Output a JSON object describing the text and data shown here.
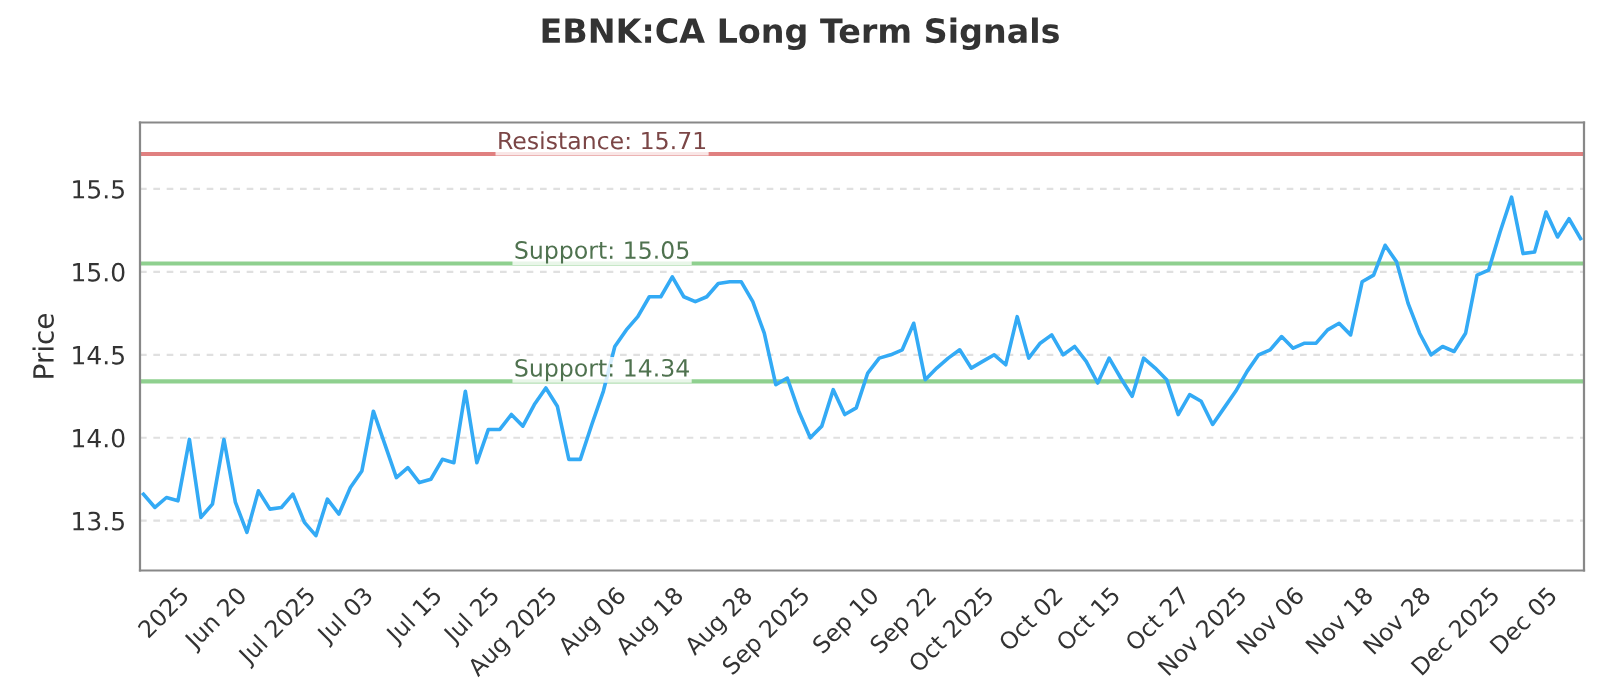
{
  "chart_data": {
    "type": "line",
    "title": "EBNK:CA Long Term Signals",
    "ylabel": "Price",
    "categories": [
      null,
      null,
      null,
      "2025",
      null,
      null,
      null,
      null,
      "Jun 20",
      null,
      null,
      null,
      null,
      null,
      "Jul 2025",
      null,
      null,
      null,
      null,
      "Jul 03",
      null,
      null,
      null,
      null,
      null,
      "Jul 15",
      null,
      null,
      null,
      null,
      "Jul 25",
      null,
      null,
      null,
      null,
      "Aug 2025",
      null,
      null,
      null,
      null,
      null,
      "Aug 06",
      null,
      null,
      null,
      null,
      "Aug 18",
      null,
      null,
      null,
      null,
      null,
      "Aug 28",
      null,
      null,
      null,
      null,
      "Sep 2025",
      null,
      null,
      null,
      null,
      null,
      "Sep 10",
      null,
      null,
      null,
      null,
      "Sep 22",
      null,
      null,
      null,
      null,
      "Oct 2025",
      null,
      null,
      null,
      null,
      null,
      "Oct 02",
      null,
      null,
      null,
      null,
      "Oct 15",
      null,
      null,
      null,
      null,
      null,
      "Oct 27",
      null,
      null,
      null,
      null,
      "Nov 2025",
      null,
      null,
      null,
      null,
      "Nov 06",
      null,
      null,
      null,
      null,
      null,
      "Nov 18",
      null,
      null,
      null,
      null,
      "Nov 28",
      null,
      null,
      null,
      null,
      null,
      "Dec 2025",
      null,
      null,
      null,
      null,
      "Dec 05",
      null,
      null,
      null
    ],
    "series": [
      {
        "color": "#33aaf5",
        "values": [
          13.66,
          13.58,
          13.64,
          13.62,
          13.99,
          13.52,
          13.6,
          13.99,
          13.61,
          13.43,
          13.68,
          13.57,
          13.58,
          13.66,
          13.49,
          13.41,
          13.63,
          13.54,
          13.7,
          13.8,
          14.16,
          13.96,
          13.76,
          13.82,
          13.73,
          13.75,
          13.87,
          13.85,
          14.28,
          13.85,
          14.05,
          14.05,
          14.14,
          14.07,
          14.2,
          14.3,
          14.19,
          13.87,
          13.87,
          14.08,
          14.28,
          14.55,
          14.65,
          14.73,
          14.85,
          14.85,
          14.97,
          14.85,
          14.82,
          14.85,
          14.93,
          14.94,
          14.94,
          14.82,
          14.63,
          14.32,
          14.36,
          14.16,
          14.0,
          14.07,
          14.29,
          14.14,
          14.18,
          14.39,
          14.48,
          14.5,
          14.53,
          14.69,
          14.35,
          14.42,
          14.48,
          14.53,
          14.42,
          14.46,
          14.5,
          14.44,
          14.73,
          14.48,
          14.57,
          14.62,
          14.5,
          14.55,
          14.46,
          14.33,
          14.48,
          14.36,
          14.25,
          14.48,
          14.42,
          14.35,
          14.14,
          14.26,
          14.22,
          14.08,
          14.18,
          14.28,
          14.4,
          14.5,
          14.53,
          14.61,
          14.54,
          14.57,
          14.57,
          14.65,
          14.69,
          14.62,
          14.94,
          14.98,
          15.16,
          15.06,
          14.81,
          14.63,
          14.5,
          14.55,
          14.52,
          14.63,
          14.98,
          15.01,
          15.24,
          15.45,
          15.11,
          15.12,
          15.36,
          15.21,
          15.32,
          15.2
        ]
      }
    ],
    "ylim": [
      13.2,
      15.9
    ],
    "yticks": [
      13.5,
      {
        "value": 14,
        "label": "14.0"
      },
      14.5,
      {
        "value": 15,
        "label": "15.0"
      },
      15.5
    ],
    "grid": "y",
    "ref_lines": [
      {
        "axis": "y",
        "value": 15.71,
        "label": "Resistance: 15.71",
        "color": "#e08080"
      },
      {
        "axis": "y",
        "value": 15.05,
        "label": "Support: 15.05",
        "color": "#8fd08f"
      },
      {
        "axis": "y",
        "value": 14.34,
        "label": "Support: 14.34",
        "color": "#8fd08f"
      }
    ]
  }
}
